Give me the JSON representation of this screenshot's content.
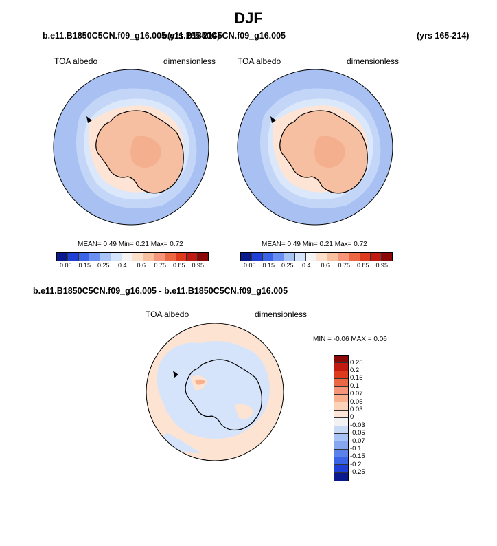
{
  "season": "DJF",
  "top_left": {
    "case": "b.e11.B1850C5CN.f09_g16.005",
    "years": "(yrs 165-214)",
    "variable": "TOA albedo",
    "units": "dimensionless",
    "mean_label": "MEAN=",
    "mean": "0.49",
    "min_label": "Min=",
    "min": "0.21",
    "max_label": "Max=",
    "max": "0.72"
  },
  "top_right": {
    "case": "b.e11.B1850C5CN.f09_g16.005",
    "years": "(yrs 165-214)",
    "variable": "TOA albedo",
    "units": "dimensionless",
    "mean_label": "MEAN=",
    "mean": "0.49",
    "min_label": "Min=",
    "min": "0.21",
    "max_label": "Max=",
    "max": "0.72"
  },
  "colorbar_abs": {
    "labels": [
      "0.05",
      "0.15",
      "0.25",
      "0.4",
      "0.6",
      "0.75",
      "0.85",
      "0.95"
    ],
    "colors": [
      "#0a1a8c",
      "#1f3fd6",
      "#3a63e8",
      "#6a8ff0",
      "#a8c3f5",
      "#d4e4fa",
      "#f4f4f4",
      "#fde0cc",
      "#f9c0a0",
      "#f5957a",
      "#ec6845",
      "#de3b1e",
      "#c21a10",
      "#8a0808"
    ]
  },
  "bottom": {
    "title": "b.e11.B1850C5CN.f09_g16.005 - b.e11.B1850C5CN.f09_g16.005",
    "variable": "TOA albedo",
    "units": "dimensionless",
    "min_label": "MIN =",
    "min": "-0.06",
    "max_label": "MAX =",
    "max": "0.06"
  },
  "colorbar_diff": {
    "labels": [
      "0.25",
      "0.2",
      "0.15",
      "0.1",
      "0.07",
      "0.05",
      "0.03",
      "0",
      "-0.03",
      "-0.05",
      "-0.07",
      "-0.1",
      "-0.15",
      "-0.2",
      "-0.25"
    ],
    "colors": [
      "#8a0808",
      "#c21a10",
      "#de3b1e",
      "#ec6845",
      "#f5957a",
      "#f9b08f",
      "#fcd2b8",
      "#fde6d8",
      "#f2f2f2",
      "#c9daf7",
      "#a8c3f5",
      "#86a6f0",
      "#5b82ea",
      "#3a63e8",
      "#1f3fd6",
      "#0a1a8c"
    ]
  },
  "map_colors": {
    "ocean_outer": "#a8c0f2",
    "ocean_mid": "#c3d6f8",
    "ocean_inner": "#dbe8fb",
    "ice_edge": "#fde4d4",
    "continent": "#f7bfa2",
    "continent_dark": "#f2a886",
    "diff_blue": "#d5e4fa",
    "diff_red": "#fde3d1"
  }
}
